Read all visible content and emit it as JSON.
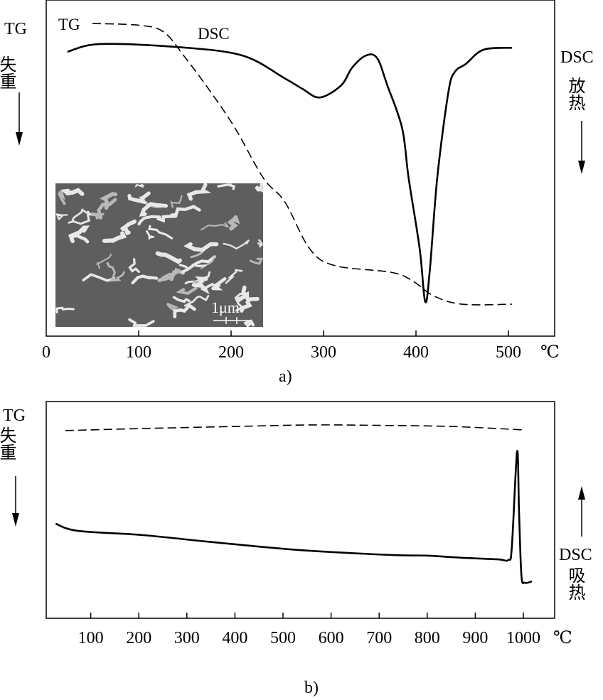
{
  "chart_data": [
    {
      "type": "line",
      "panel_label": "a)",
      "xlabel_unit": "℃",
      "xlim": [
        0,
        550
      ],
      "xticks": [
        0,
        100,
        200,
        300,
        400,
        500
      ],
      "ylim": [
        0,
        100
      ],
      "ylabel_left": [
        "TG",
        "失重"
      ],
      "ylabel_right": [
        "DSC",
        "放热"
      ],
      "left_arrow": "down",
      "right_arrow": "down",
      "inset": {
        "scale_bar": "1μm"
      },
      "series": [
        {
          "name": "TG",
          "style": "dashed",
          "label": "TG",
          "x": [
            50,
            100,
            127,
            150,
            177,
            204,
            235,
            258,
            285,
            312,
            373,
            396,
            419,
            450,
            504
          ],
          "y": [
            93,
            92.5,
            90.5,
            83,
            73,
            62,
            47,
            40,
            26,
            21,
            19,
            16.5,
            12,
            9.5,
            9.5
          ]
        },
        {
          "name": "DSC",
          "style": "solid",
          "label": "DSC",
          "x": [
            23,
            58,
            142,
            212,
            258,
            277,
            296,
            319,
            331,
            346,
            358,
            369,
            385,
            392,
            404,
            410,
            415,
            423,
            435,
            442,
            454,
            473,
            504
          ],
          "y": [
            84.6,
            86.9,
            86,
            83.5,
            76.7,
            73.6,
            71,
            74.6,
            79.9,
            83.5,
            82.7,
            74.6,
            61.9,
            47.1,
            26,
            10.2,
            19.7,
            47.1,
            72.5,
            78.6,
            81,
            85.2,
            85.8
          ]
        }
      ]
    },
    {
      "type": "line",
      "panel_label": "b)",
      "xlabel_unit": "℃",
      "xlim": [
        0,
        1065
      ],
      "xticks": [
        100,
        200,
        300,
        400,
        500,
        600,
        700,
        800,
        900,
        1000
      ],
      "ylim": [
        0,
        100
      ],
      "ylabel_left": [
        "TG",
        "失重"
      ],
      "ylabel_right": [
        "DSC",
        "吸热"
      ],
      "left_arrow": "down",
      "right_arrow": "up",
      "series": [
        {
          "name": "TG",
          "style": "dashed",
          "x": [
            47,
            200,
            400,
            560,
            700,
            850,
            1000
          ],
          "y": [
            86.6,
            87.5,
            88.5,
            89.2,
            89,
            88.5,
            86.9
          ]
        },
        {
          "name": "DSC",
          "style": "solid",
          "x": [
            27,
            74,
            207,
            355,
            533,
            725,
            799,
            873,
            947,
            969,
            976,
            987,
            991,
            996,
            1003,
            1018
          ],
          "y": [
            43.6,
            40.3,
            38.4,
            35.1,
            31.5,
            29.2,
            28.9,
            27.9,
            27.2,
            26.9,
            32.8,
            77,
            49.2,
            19.7,
            16.4,
            17
          ]
        }
      ]
    }
  ]
}
